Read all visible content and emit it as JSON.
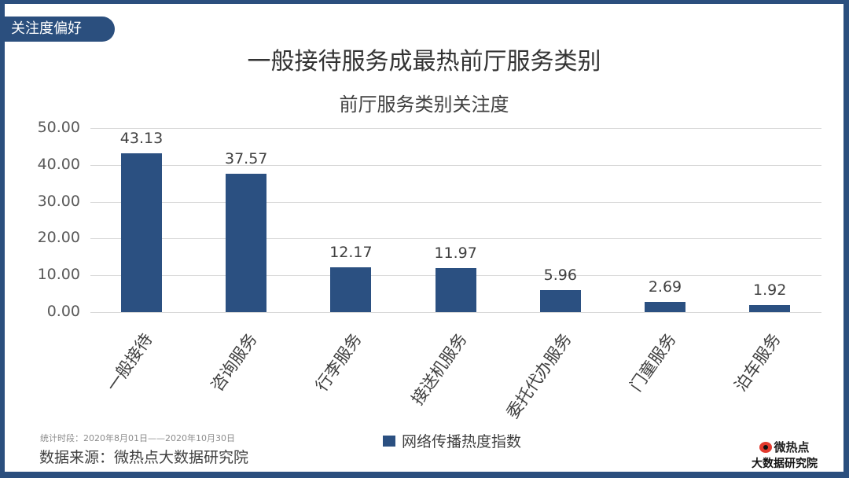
{
  "tag": "关注度偏好",
  "title": "一般接待服务成最热前厅服务类别",
  "subtitle": "前厅服务类别关注度",
  "legend": {
    "label": "网络传播热度指数",
    "color": "#2b5081"
  },
  "footer": {
    "period": "统计时段：2020年8月01日——2020年10月30日",
    "source": "数据来源：微热点大数据研究院"
  },
  "logo": {
    "line1": "微热点",
    "line2": "大数据研究院"
  },
  "colors": {
    "frame": "#2b4f7e",
    "bar": "#2b5081",
    "grid": "#d9d9d9"
  },
  "chart_data": {
    "type": "bar",
    "title": "前厅服务类别关注度",
    "xlabel": "",
    "ylabel": "",
    "ylim": [
      0,
      50
    ],
    "yticks": [
      "0.00",
      "10.00",
      "20.00",
      "30.00",
      "40.00",
      "50.00"
    ],
    "grid": true,
    "legend_position": "bottom",
    "categories": [
      "一般接待",
      "咨询服务",
      "行李服务",
      "接送机服务",
      "委托代办服务",
      "门童服务",
      "泊车服务"
    ],
    "series": [
      {
        "name": "网络传播热度指数",
        "values": [
          43.13,
          37.57,
          12.17,
          11.97,
          5.96,
          2.69,
          1.92
        ]
      }
    ],
    "value_labels": [
      "43.13",
      "37.57",
      "12.17",
      "11.97",
      "5.96",
      "2.69",
      "1.92"
    ]
  }
}
